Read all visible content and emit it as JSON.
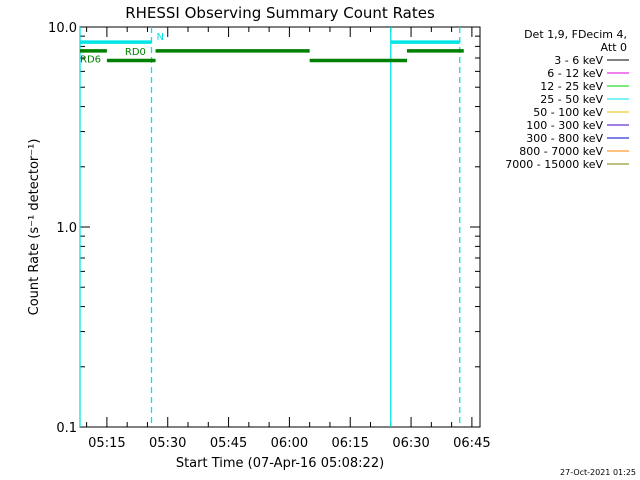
{
  "chart_data": {
    "type": "line",
    "title": "RHESSI Observing Summary Count Rates",
    "xlabel": "Start Time (07-Apr-16 05:08:22)",
    "ylabel": "Count Rate (s⁻¹ detector⁻¹)",
    "y_scale": "log",
    "ylim": [
      0.1,
      10.0
    ],
    "xlim": [
      "05:08:22",
      "06:47:00"
    ],
    "x_ticks": [
      "05:15",
      "05:30",
      "05:45",
      "06:00",
      "06:15",
      "06:30",
      "06:45"
    ],
    "y_ticks": [
      "10.0",
      "1.0",
      "0.1"
    ],
    "legend": {
      "placement": "right",
      "header": [
        "Det 1,9, FDecim 4,",
        "Att 0"
      ],
      "entries": [
        {
          "label": "3 - 6 keV",
          "color": "#000000"
        },
        {
          "label": "6 - 12 keV",
          "color": "#e000e0"
        },
        {
          "label": "12 - 25 keV",
          "color": "#00d000"
        },
        {
          "label": "25 - 50 keV",
          "color": "#00e5e5"
        },
        {
          "label": "50 - 100 keV",
          "color": "#e0c000"
        },
        {
          "label": "100 - 300 keV",
          "color": "#4000c0"
        },
        {
          "label": "300 - 800 keV",
          "color": "#0000d0"
        },
        {
          "label": "800 - 7000 keV",
          "color": "#ff8000"
        },
        {
          "label": "7000 - 15000 keV",
          "color": "#808000"
        }
      ]
    },
    "flags": [
      {
        "label": "N",
        "color": "#00e5e5",
        "level": 8.4,
        "segments": [
          [
            "05:08:22",
            "05:26:00"
          ],
          [
            "06:25:00",
            "06:42:00"
          ]
        ]
      },
      {
        "label": "RD0",
        "color": "#008000",
        "level": 7.6,
        "segments": [
          [
            "05:08:22",
            "05:15:00"
          ],
          [
            "05:27:00",
            "06:05:00"
          ],
          [
            "06:29:00",
            "06:43:00"
          ]
        ]
      },
      {
        "label": "RD6",
        "color": "#008000",
        "level": 6.8,
        "segments": [
          [
            "05:15:00",
            "05:27:00"
          ],
          [
            "06:05:00",
            "06:29:00"
          ]
        ]
      }
    ],
    "verticals": [
      {
        "time": "05:08:22",
        "style": "solid",
        "color": "#00e5e5"
      },
      {
        "time": "05:26:00",
        "style": "dashed",
        "color": "#00e5e5"
      },
      {
        "time": "06:25:00",
        "style": "solid",
        "color": "#00e5e5"
      },
      {
        "time": "06:42:00",
        "style": "dashed",
        "color": "#00e5e5"
      }
    ]
  },
  "footer_date": "27-Oct-2021 01:25"
}
